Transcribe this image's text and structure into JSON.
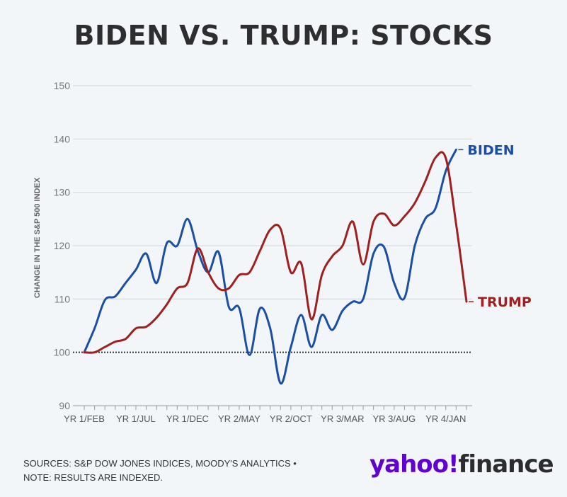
{
  "title": "BIDEN VS. TRUMP: STOCKS",
  "sources": {
    "line1": "SOURCES: S&P DOW JONES INDICES, MOODY'S ANALYTICS •",
    "line2": "NOTE: RESULTS ARE INDEXED."
  },
  "logo": {
    "yahoo": "yahoo!",
    "finance": "finance"
  },
  "colors": {
    "biden": "#1a4fa3",
    "trump": "#9e2020",
    "grid": "#d4d8dc",
    "text": "#777777"
  },
  "chart_data": {
    "type": "line",
    "title": "BIDEN VS. TRUMP: STOCKS",
    "xlabel": "",
    "ylabel": "CHANGE IN THE S&P 500 INDEX",
    "ylim": [
      90,
      150
    ],
    "yticks": [
      90,
      100,
      110,
      120,
      130,
      140,
      150
    ],
    "xlim": [
      0,
      37
    ],
    "x_tick_labels": [
      {
        "x": 0,
        "label": "YR 1/FEB"
      },
      {
        "x": 5,
        "label": "YR 1/JUL"
      },
      {
        "x": 10,
        "label": "YR 1/DEC"
      },
      {
        "x": 15,
        "label": "YR 2/MAY"
      },
      {
        "x": 20,
        "label": "YR 2/OCT"
      },
      {
        "x": 25,
        "label": "YR 3/MAR"
      },
      {
        "x": 30,
        "label": "YR 3/AUG"
      },
      {
        "x": 35,
        "label": "YR 4/JAN"
      }
    ],
    "x_tick_count": 38,
    "reference_line": 100,
    "grid": true,
    "series": [
      {
        "name": "BIDEN",
        "color": "#1a4fa3",
        "values": [
          100,
          104.5,
          109.8,
          110.5,
          113,
          115.5,
          118.5,
          113,
          120.5,
          120,
          125,
          119,
          115,
          118.8,
          108.5,
          108.3,
          99.5,
          108.2,
          104.5,
          94.2,
          101,
          107,
          101,
          107,
          104.2,
          107.8,
          109.5,
          110,
          118.5,
          119.8,
          113,
          110.2,
          120,
          125,
          127,
          134,
          138
        ]
      },
      {
        "name": "TRUMP",
        "color": "#9e2020",
        "values": [
          100,
          100,
          101,
          102,
          102.5,
          104.5,
          104.8,
          106.5,
          109,
          112,
          113,
          119.5,
          115,
          112,
          112,
          114.5,
          115,
          119,
          123,
          123.2,
          115,
          116.7,
          106.2,
          114.5,
          118,
          120,
          124.5,
          116.5,
          124.5,
          126,
          123.8,
          125.5,
          128,
          132,
          136.5,
          136.4,
          124,
          109.5
        ]
      }
    ]
  }
}
